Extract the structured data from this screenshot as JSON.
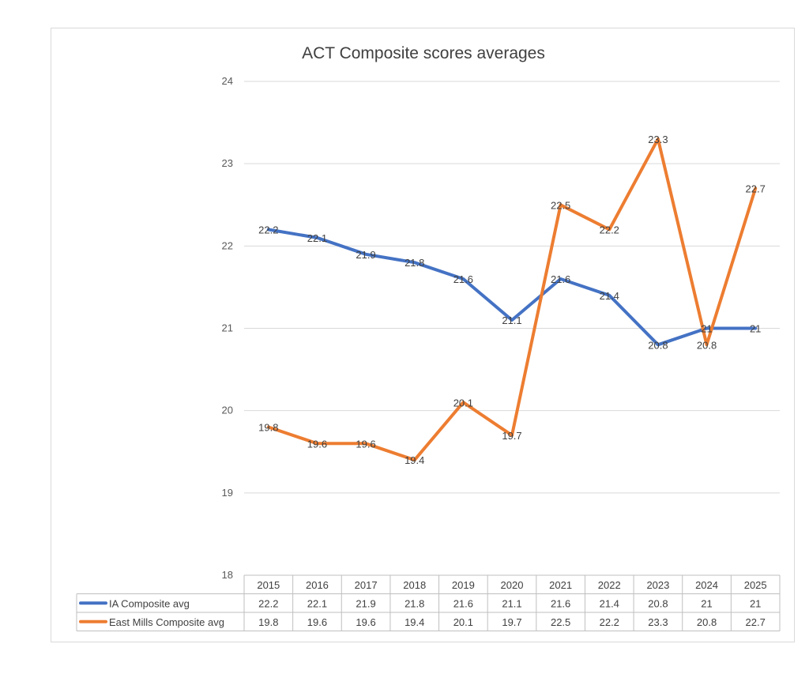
{
  "chart_data": {
    "type": "line",
    "title": "ACT Composite scores averages",
    "xlabel": "",
    "ylabel": "",
    "ylim": [
      18,
      24
    ],
    "yticks": [
      18,
      19,
      20,
      21,
      22,
      23,
      24
    ],
    "grid": true,
    "legend": "data table (bottom)",
    "categories": [
      "2015",
      "2016",
      "2017",
      "2018",
      "2019",
      "2020",
      "2021",
      "2022",
      "2023",
      "2024",
      "2025"
    ],
    "series": [
      {
        "name": "IA Composite avg",
        "color": "#4472c4",
        "values": [
          22.2,
          22.1,
          21.9,
          21.8,
          21.6,
          21.1,
          21.6,
          21.4,
          20.8,
          21,
          21
        ],
        "labels": [
          "22.2",
          "22.1",
          "21.9",
          "21.8",
          "21.6",
          "21.1",
          "21.6",
          "21.4",
          "20.8",
          "21",
          "21"
        ]
      },
      {
        "name": "East Mills Composite avg",
        "color": "#ed7d31",
        "values": [
          19.8,
          19.6,
          19.6,
          19.4,
          20.1,
          19.7,
          22.5,
          22.2,
          23.3,
          20.8,
          22.7
        ],
        "labels": [
          "19.8",
          "19.6",
          "19.6",
          "19.4",
          "20.1",
          "19.7",
          "22.5",
          "22.2",
          "23.3",
          "20.8",
          "22.7"
        ]
      }
    ]
  }
}
